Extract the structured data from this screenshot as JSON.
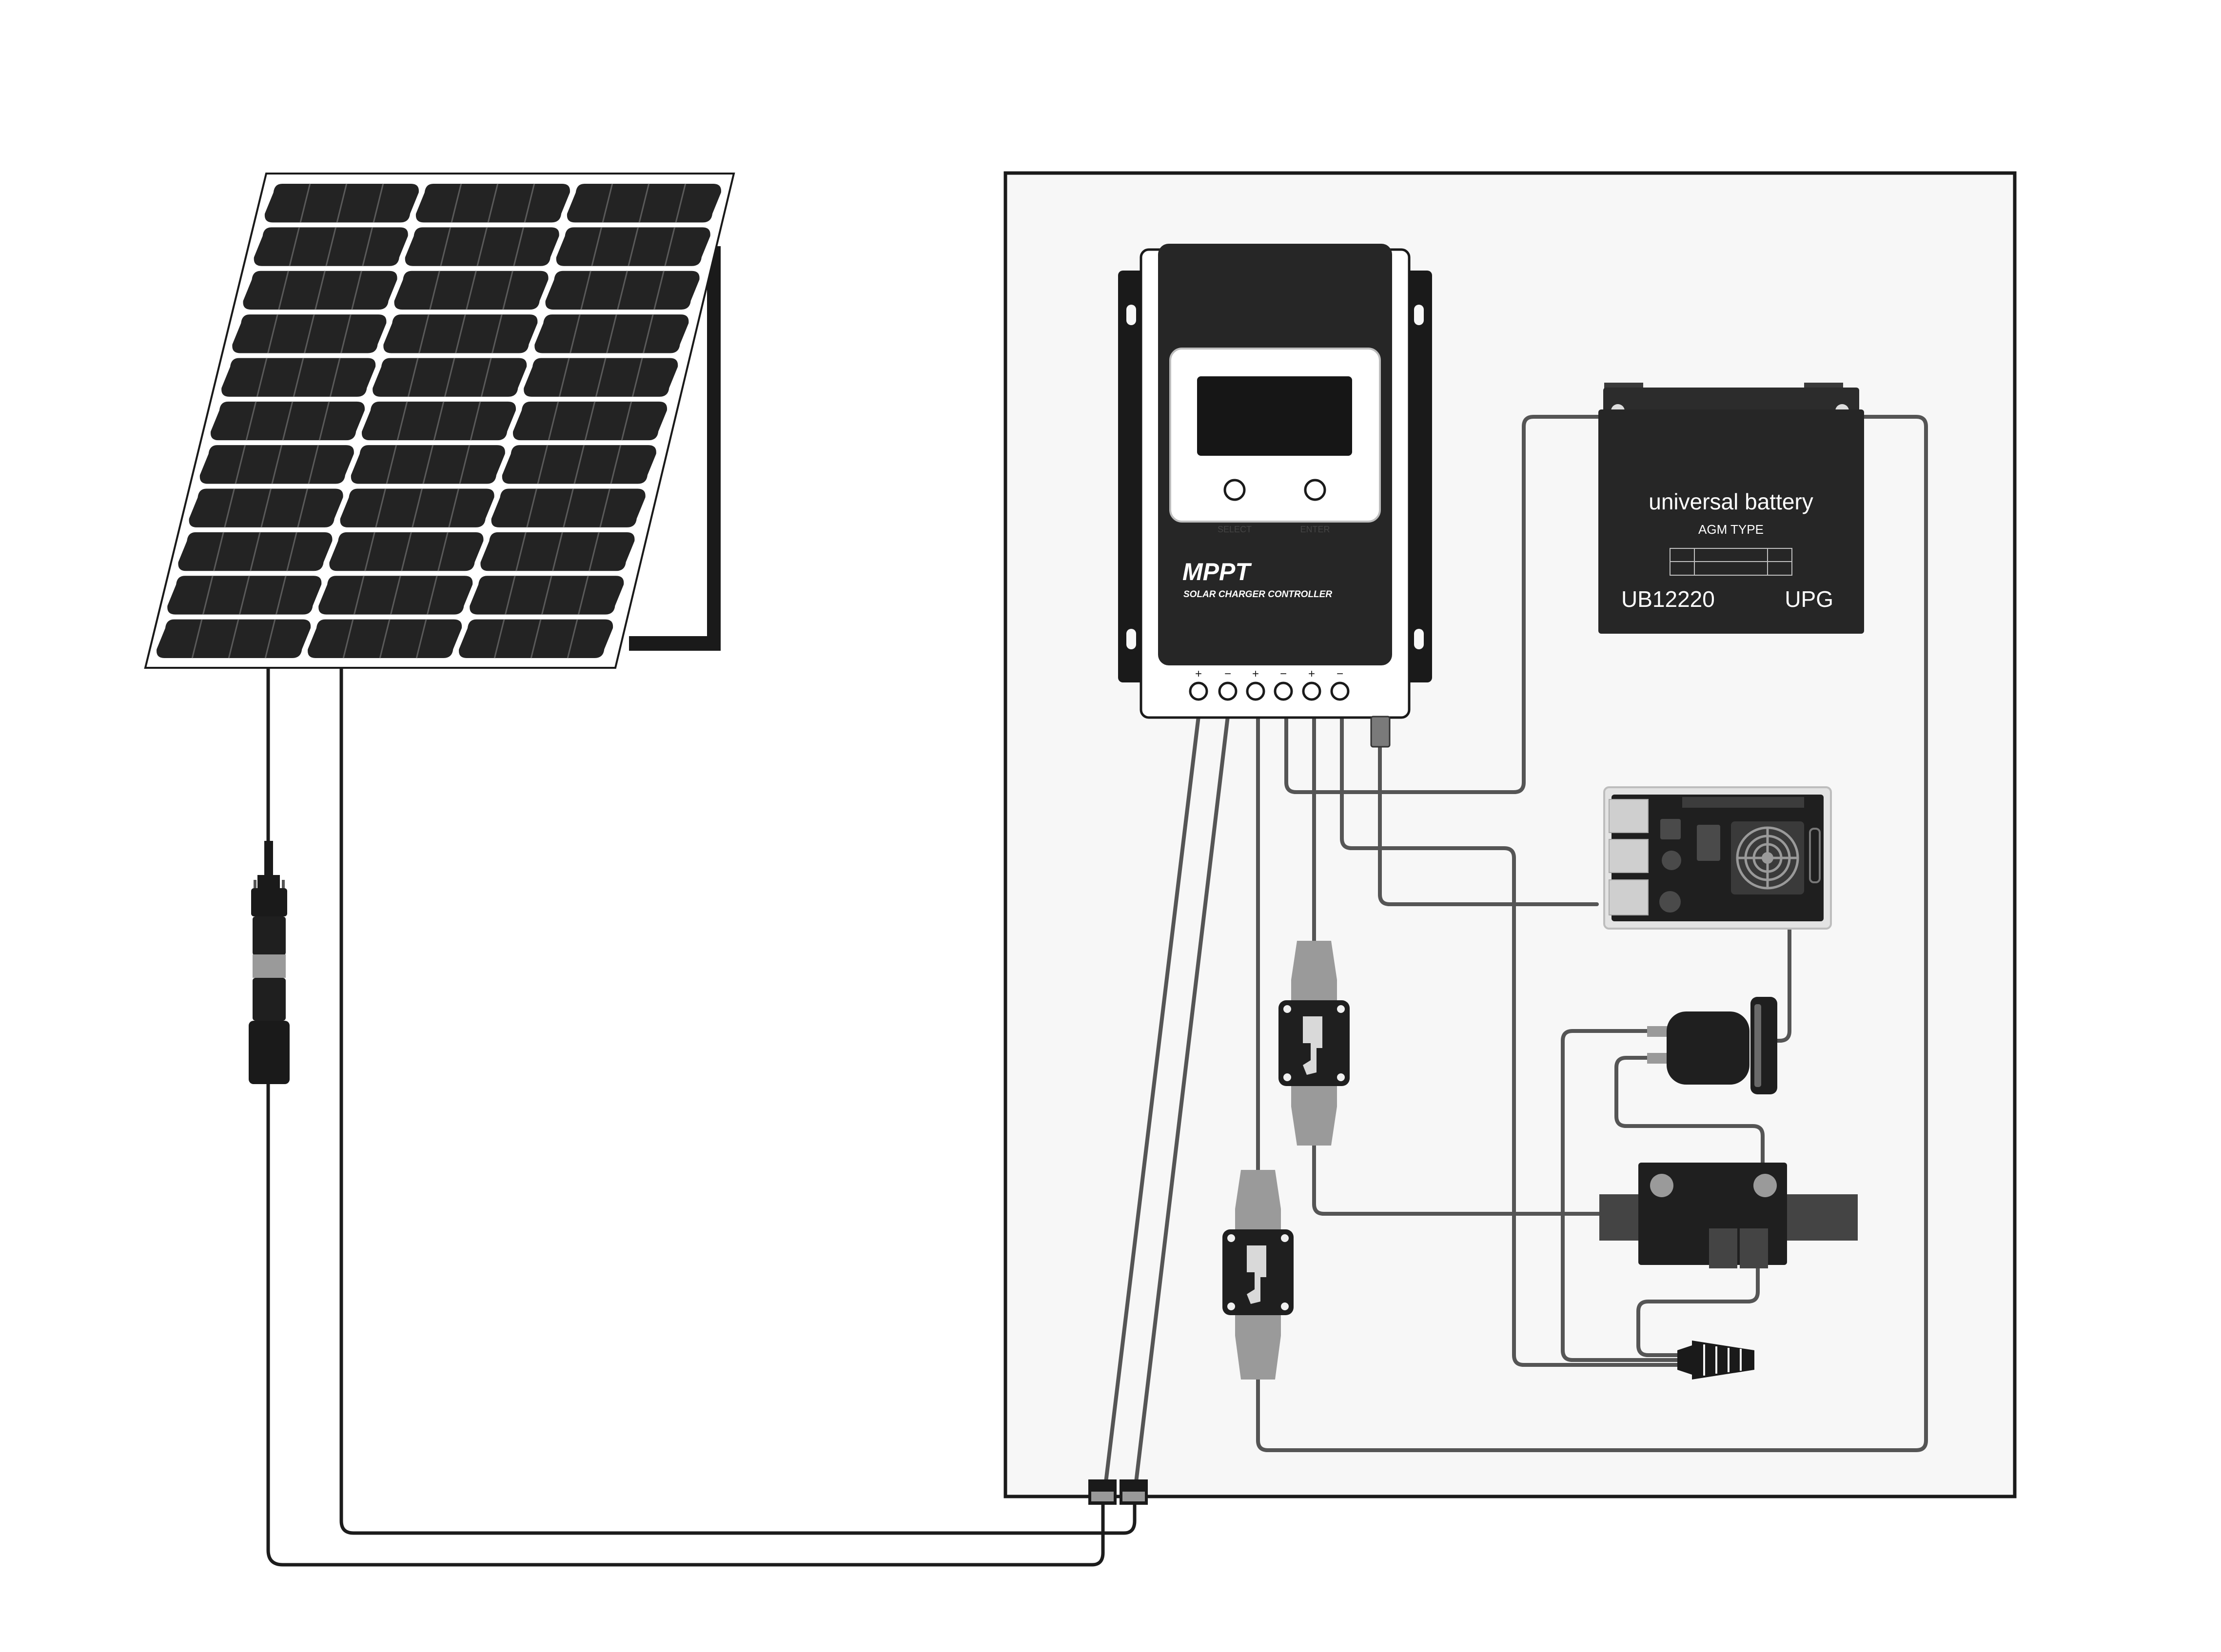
{
  "controller": {
    "brand": "MPPT",
    "subtitle": "SOLAR CHARGER CONTROLLER",
    "select_label": "SELECT",
    "enter_label": "ENTER",
    "terminal_signs": [
      "+",
      "−",
      "+",
      "−",
      "+",
      "−"
    ]
  },
  "battery": {
    "title": "universal battery",
    "type": "AGM TYPE",
    "model": "UB12220",
    "brand": "UPG"
  },
  "colors": {
    "background": "#ffffff",
    "enclosure_fill": "#f7f7f7",
    "outline": "#1a1a1a",
    "device_black": "#262626",
    "wire_gray": "#555555",
    "wire_black": "#1c1c1c",
    "breaker_gray": "#9a9a9a",
    "panel_cell": "#232323"
  }
}
